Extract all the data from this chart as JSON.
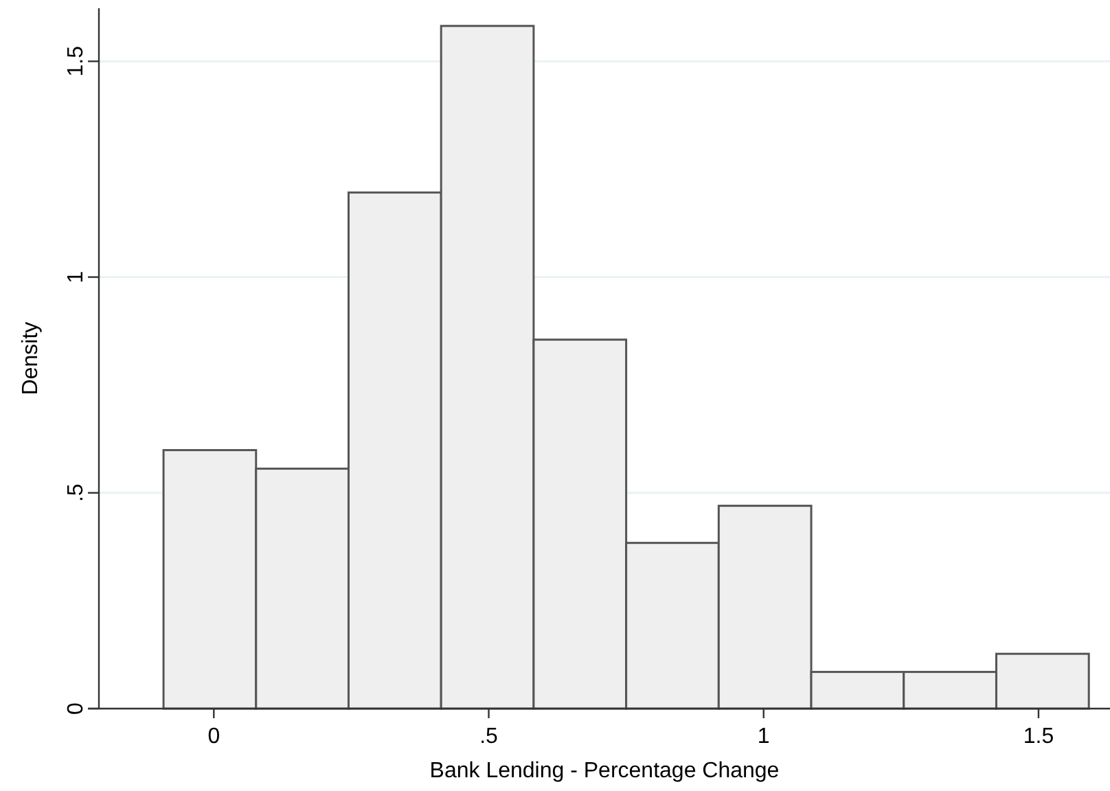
{
  "chart_data": {
    "type": "histogram",
    "xlabel": "Bank Lending - Percentage Change",
    "ylabel": "Density",
    "bins": [
      -0.0915,
      0.0768,
      0.2451,
      0.4134,
      0.5817,
      0.75,
      0.9183,
      1.0866,
      1.2549,
      1.4232,
      1.5915
    ],
    "values": [
      0.599,
      0.556,
      1.196,
      1.582,
      0.855,
      0.384,
      0.47,
      0.085,
      0.085,
      0.127
    ],
    "color": "#efefef",
    "xlim": [
      -0.209,
      1.63
    ],
    "ylim": [
      0,
      1.623
    ],
    "xticks": [
      0,
      {
        "value": 0.5,
        "label": ".5"
      },
      1,
      1.5
    ],
    "yticks": [
      0,
      {
        "value": 0.5,
        "label": ".5"
      },
      1,
      1.5
    ],
    "grid": "y"
  }
}
